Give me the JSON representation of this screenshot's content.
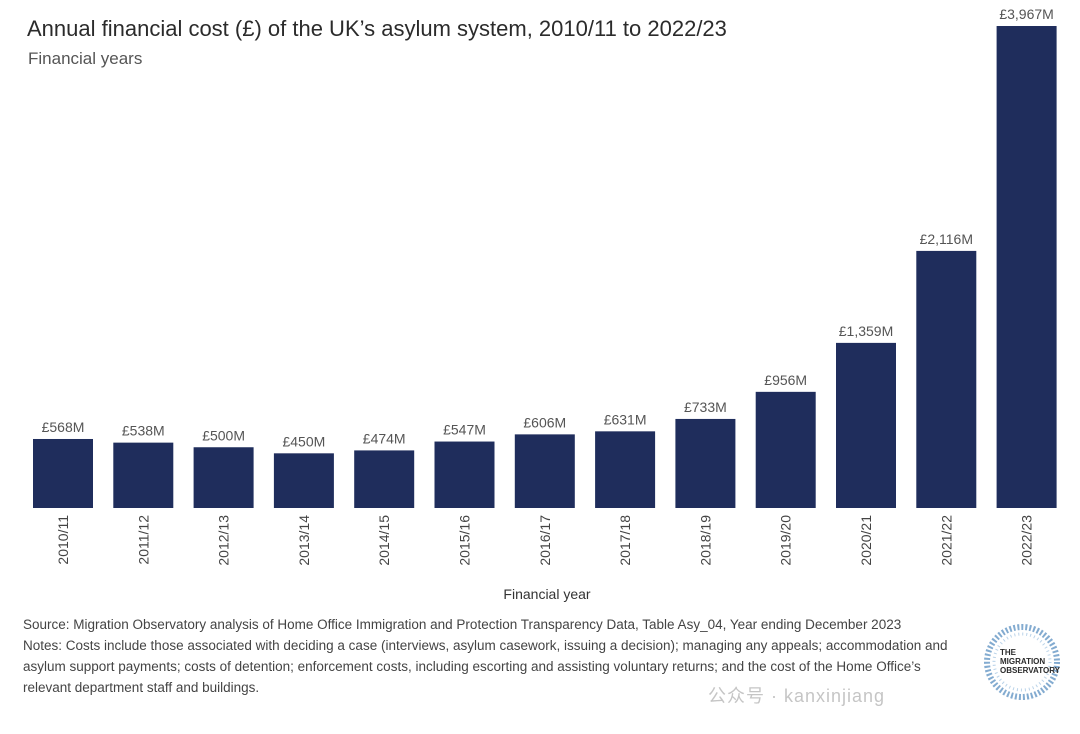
{
  "chart_data": {
    "type": "bar",
    "title": "Annual financial cost (£) of the UK’s asylum system, 2010/11 to 2022/23",
    "subtitle": "Financial years",
    "xlabel": "Financial year",
    "ylabel": "",
    "categories": [
      "2010/11",
      "2011/12",
      "2012/13",
      "2013/14",
      "2014/15",
      "2015/16",
      "2016/17",
      "2017/18",
      "2018/19",
      "2019/20",
      "2020/21",
      "2021/22",
      "2022/23"
    ],
    "values": [
      568,
      538,
      500,
      450,
      474,
      547,
      606,
      631,
      733,
      956,
      1359,
      2116,
      3967
    ],
    "data_labels": [
      "£568M",
      "£538M",
      "£500M",
      "£450M",
      "£474M",
      "£547M",
      "£606M",
      "£631M",
      "£733M",
      "£956M",
      "£1,359M",
      "£2,116M",
      "£3,967M"
    ],
    "unit": "£M",
    "ylim": [
      0,
      4000
    ],
    "grid": false,
    "bar_color": "#1f2d5c"
  },
  "footer": {
    "source": "Source: Migration Observatory analysis of Home Office Immigration and Protection Transparency Data, Table Asy_04, Year ending December 2023",
    "notes": "Notes: Costs include those associated with deciding a case (interviews, asylum casework, issuing a decision); managing any appeals; accommodation and asylum support payments; costs of detention; enforcement costs, including escorting and assisting voluntary returns; and the cost of the Home Office’s relevant department staff and buildings."
  },
  "logo": {
    "text": "THE MIGRATION OBSERVATORY"
  },
  "watermark": {
    "text": "公众号 · kanxinjiang"
  }
}
